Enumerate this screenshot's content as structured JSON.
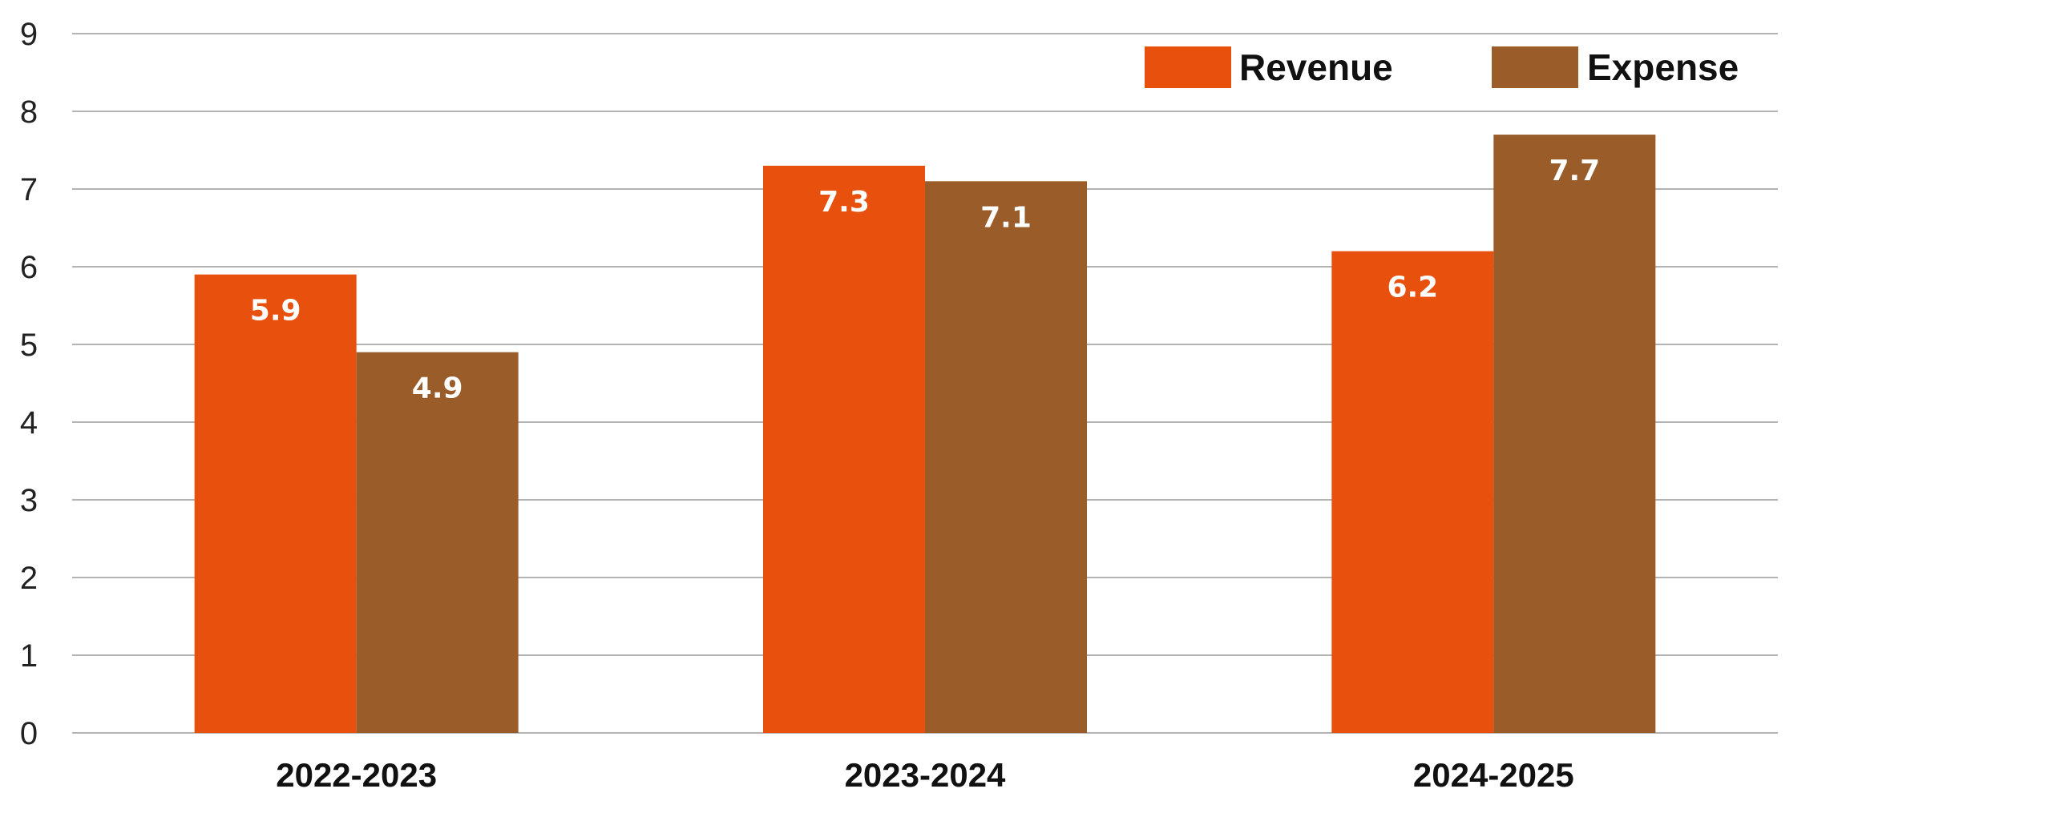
{
  "chart_data": {
    "type": "bar",
    "categories": [
      "2022-2023",
      "2023-2024",
      "2024-2025"
    ],
    "series": [
      {
        "name": "Revenue",
        "values": [
          5.9,
          7.3,
          6.2
        ],
        "color": "#e8500e"
      },
      {
        "name": "Expense",
        "values": [
          4.9,
          7.1,
          7.7
        ],
        "color": "#9a5c28"
      }
    ],
    "title": "",
    "xlabel": "",
    "ylabel": "",
    "ylim": [
      0,
      9
    ],
    "yticks": [
      0,
      1,
      2,
      3,
      4,
      5,
      6,
      7,
      8,
      9
    ],
    "grid": true,
    "legend": "top-right",
    "data_labels": true
  }
}
